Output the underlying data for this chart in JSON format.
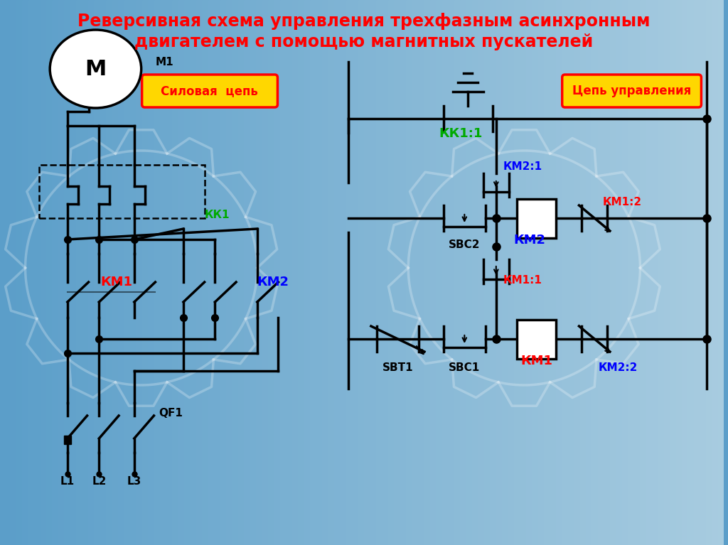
{
  "title_line1": "Реверсивная схема управления трехфазным асинхронным",
  "title_line2": "двигателем с помощью магнитных пускателей",
  "title_color": "#FF0000",
  "line_color": "#000000",
  "label_sbt1": "SBT1",
  "label_sbc1": "SBC1",
  "label_sbc2": "SBC2",
  "label_km1": "КМ1",
  "label_km2": "КМ2",
  "label_km1_1": "КМ1:1",
  "label_km2_1": "КМ2:1",
  "label_km1_2": "КМ1:2",
  "label_km2_2": "КМ2:2",
  "label_kk1_1": "КК1:1",
  "label_kk1": "КК1",
  "label_qf1": "QF1",
  "label_m1": "М1",
  "label_m": "М",
  "label_l1": "L1",
  "label_l2": "L2",
  "label_l3": "L3",
  "label_silovaya": "Силовая  цепь",
  "label_tsep": "Цепь управления",
  "color_red": "#FF0000",
  "color_blue": "#0000FF",
  "color_green": "#00AA00",
  "color_black": "#000000",
  "color_white": "#FFFFFF",
  "color_yellow_bg": "#FFD700",
  "bg_left_color": "#5B9EC9",
  "bg_right_color": "#A8CCE0"
}
